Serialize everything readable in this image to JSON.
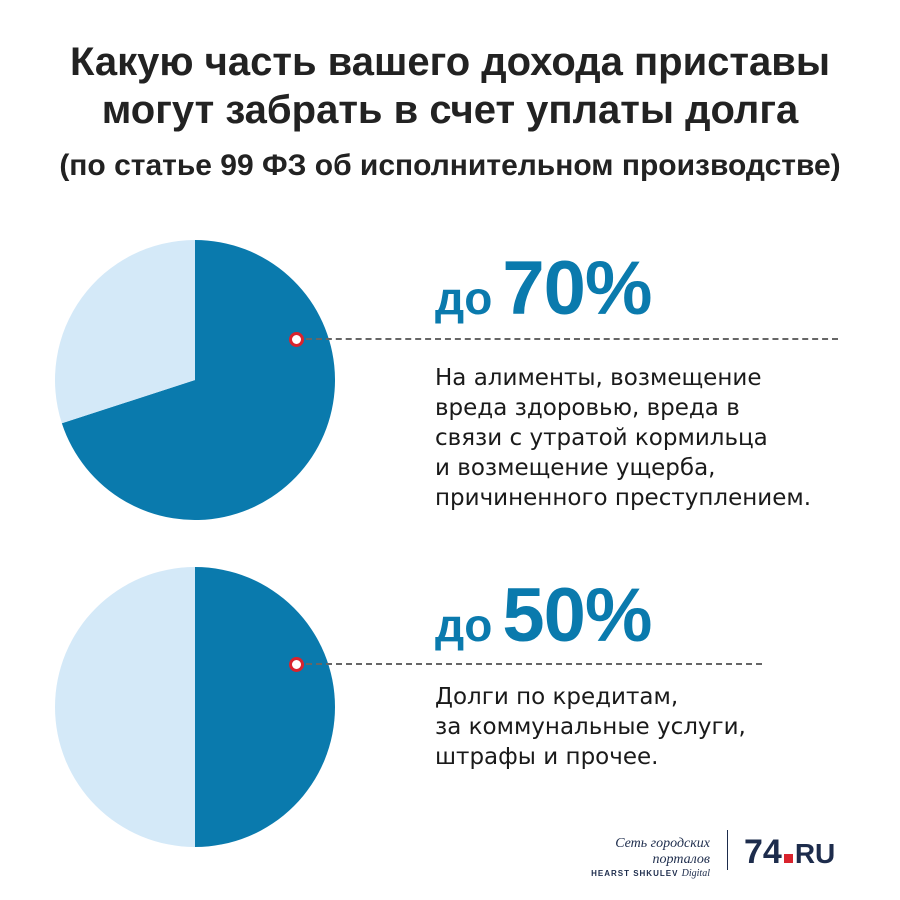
{
  "title_lines": [
    "Какую часть вашего дохода приставы",
    "могут забрать в счет уплаты долга"
  ],
  "subtitle": "(по статье 99 ФЗ об исполнительном производстве)",
  "colors": {
    "accent": "#0a7aad",
    "light": "#d4e9f8",
    "marker": "#d9232d",
    "text": "#1a1a1a",
    "brand": "#1d2c4c"
  },
  "chart_data": [
    {
      "type": "pie",
      "slices": [
        {
          "label": "до 70%",
          "value": 70,
          "color": "#0a7aad"
        },
        {
          "label": "",
          "value": 30,
          "color": "#d4e9f8"
        }
      ]
    },
    {
      "type": "pie",
      "slices": [
        {
          "label": "до 50%",
          "value": 50,
          "color": "#0a7aad"
        },
        {
          "label": "",
          "value": 50,
          "color": "#d4e9f8"
        }
      ]
    }
  ],
  "blocks": [
    {
      "prefix": "до",
      "value": "70%",
      "lines": [
        "На алименты, возмещение",
        "вреда здоровью, вреда в",
        "связи с утратой кормильца",
        "и возмещение ущерба,",
        "причиненного преступлением."
      ]
    },
    {
      "prefix": "до",
      "value": "50%",
      "lines": [
        "Долги по кредитам,",
        "за коммунальные услуги,",
        "штрафы и прочее."
      ]
    }
  ],
  "footer": {
    "network": "Сеть городских порталов",
    "network_sub": "HEARST SHKULEV",
    "network_sub_italic": "Digital",
    "logo_num": "74",
    "logo_domain": "RU"
  }
}
